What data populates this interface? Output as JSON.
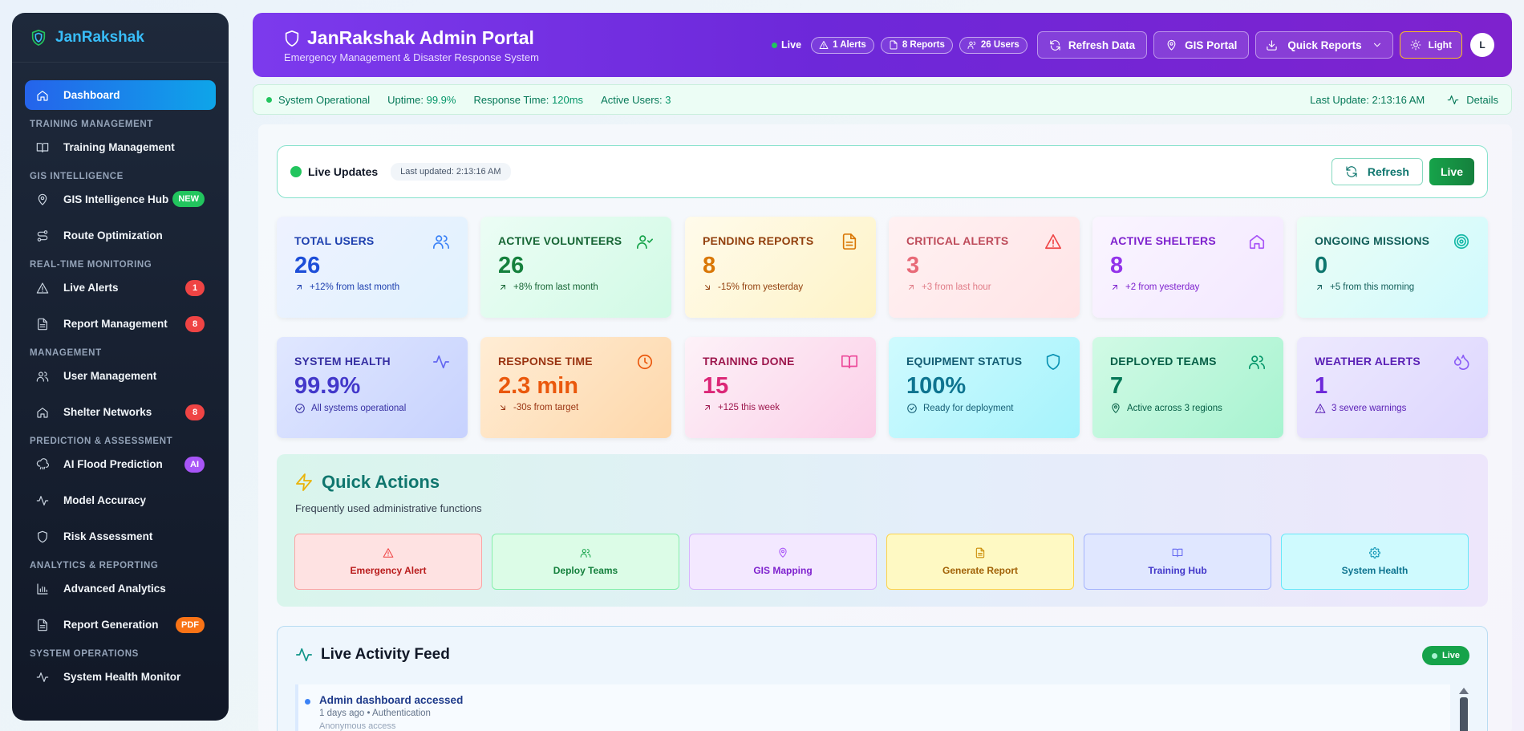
{
  "sidebar": {
    "brand": "JanRakshak",
    "dashboard": "Dashboard",
    "sections": {
      "training": "TRAINING MANAGEMENT",
      "gis": "GIS INTELLIGENCE",
      "realtime": "REAL-TIME MONITORING",
      "management": "MANAGEMENT",
      "prediction": "PREDICTION & ASSESSMENT",
      "analytics": "ANALYTICS & REPORTING",
      "system": "SYSTEM OPERATIONS"
    },
    "items": {
      "training_management": "Training Management",
      "gis_hub": "GIS Intelligence Hub",
      "gis_hub_badge": "NEW",
      "route_optimization": "Route Optimization",
      "live_alerts": "Live Alerts",
      "live_alerts_badge": "1",
      "report_management": "Report Management",
      "report_management_badge": "8",
      "user_management": "User Management",
      "shelter_networks": "Shelter Networks",
      "shelter_networks_badge": "8",
      "ai_flood": "AI Flood Prediction",
      "ai_flood_badge": "AI",
      "model_accuracy": "Model Accuracy",
      "risk_assessment": "Risk Assessment",
      "advanced_analytics": "Advanced Analytics",
      "report_generation": "Report Generation",
      "report_generation_badge": "PDF",
      "system_health_monitor": "System Health Monitor"
    }
  },
  "header": {
    "title": "JanRakshak Admin Portal",
    "subtitle": "Emergency Management & Disaster Response System",
    "live": "Live",
    "alerts_pill": "1 Alerts",
    "reports_pill": "8 Reports",
    "users_pill": "26 Users",
    "refresh": "Refresh Data",
    "gis": "GIS Portal",
    "quick_reports": "Quick Reports",
    "theme": "Light",
    "avatar": "L"
  },
  "status": {
    "operational": "System Operational",
    "uptime_label": "Uptime:",
    "uptime": "99.9%",
    "response_label": "Response Time:",
    "response": "120ms",
    "users_label": "Active Users:",
    "users": "3",
    "last_update": "Last Update: 2:13:16 AM",
    "details": "Details"
  },
  "live_updates": {
    "title": "Live Updates",
    "last_updated": "Last updated: 2:13:16 AM",
    "refresh": "Refresh",
    "live": "Live"
  },
  "stats": [
    {
      "title": "TOTAL USERS",
      "value": "26",
      "sub": "+12% from last month"
    },
    {
      "title": "ACTIVE VOLUNTEERS",
      "value": "26",
      "sub": "+8% from last month"
    },
    {
      "title": "PENDING REPORTS",
      "value": "8",
      "sub": "-15% from yesterday"
    },
    {
      "title": "CRITICAL ALERTS",
      "value": "3",
      "sub": "+3 from last hour"
    },
    {
      "title": "ACTIVE SHELTERS",
      "value": "8",
      "sub": "+2 from yesterday"
    },
    {
      "title": "ONGOING MISSIONS",
      "value": "0",
      "sub": "+5 from this morning"
    },
    {
      "title": "SYSTEM HEALTH",
      "value": "99.9%",
      "sub": "All systems operational"
    },
    {
      "title": "RESPONSE TIME",
      "value": "2.3 min",
      "sub": "-30s from target"
    },
    {
      "title": "TRAINING DONE",
      "value": "15",
      "sub": "+125 this week"
    },
    {
      "title": "EQUIPMENT STATUS",
      "value": "100%",
      "sub": "Ready for deployment"
    },
    {
      "title": "DEPLOYED TEAMS",
      "value": "7",
      "sub": "Active across 3 regions"
    },
    {
      "title": "WEATHER ALERTS",
      "value": "1",
      "sub": "3 severe warnings"
    }
  ],
  "quick_actions": {
    "title": "Quick Actions",
    "subtitle": "Frequently used administrative functions",
    "buttons": [
      "Emergency Alert",
      "Deploy Teams",
      "GIS Mapping",
      "Generate Report",
      "Training Hub",
      "System Health"
    ]
  },
  "feed": {
    "title": "Live Activity Feed",
    "live": "Live",
    "items": [
      {
        "title": "Admin dashboard accessed",
        "meta": "1 days ago • Authentication",
        "extra": "Anonymous access"
      }
    ]
  },
  "colors": {
    "accent_purple": "#7c3aed",
    "sidebar_bg": "#1e293b",
    "active_nav": "#2563eb",
    "success": "#16a34a",
    "danger": "#ef4444"
  }
}
